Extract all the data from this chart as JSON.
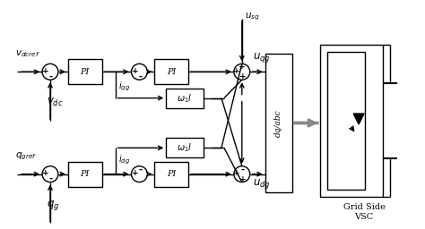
{
  "bg_color": "#ffffff",
  "line_color": "#000000",
  "labels": {
    "v_dcref": "$v_{dcref}$",
    "v_dc": "$v_{dc}$",
    "i_qg": "$i_{qg}$",
    "i_dg": "$i_{dg}$",
    "q_gref": "$q_{gref}$",
    "q_g": "$q_g$",
    "u_sq": "$u_{sq}$",
    "u_qg": "$u_{qg}$",
    "u_dg": "$u_{dg}$",
    "dq_abc": "dq/abc",
    "grid_side": "Grid Side\nVSC",
    "PI": "PI",
    "w1l": "$\\omega_1 l$"
  },
  "figsize": [
    4.74,
    2.56
  ],
  "dpi": 100
}
